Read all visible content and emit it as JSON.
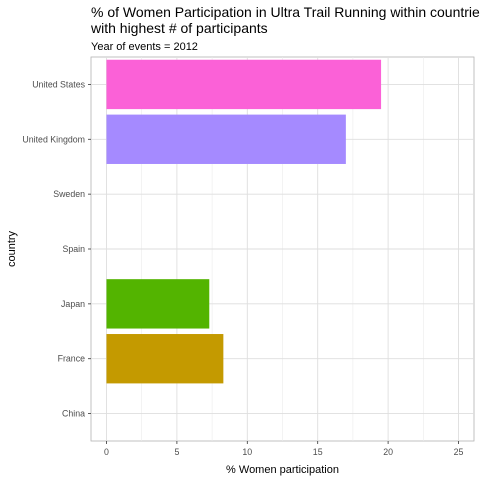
{
  "chart_data": {
    "type": "bar",
    "orientation": "horizontal",
    "title_lines": [
      "% of Women Participation in Ultra Trail Running within countries",
      "with highest # of participants"
    ],
    "subtitle": "Year of events = 2012",
    "xlabel": "% Women participation",
    "ylabel": "country",
    "categories": [
      "China",
      "France",
      "Japan",
      "Spain",
      "Sweden",
      "United Kingdom",
      "United States"
    ],
    "values": [
      0,
      8.3,
      7.3,
      0,
      0,
      17.0,
      19.5
    ],
    "colors": [
      "#F8766D",
      "#C49A00",
      "#53B400",
      "#00C094",
      "#00B6EB",
      "#A58AFF",
      "#FB61D7"
    ],
    "xlim": [
      -1.1,
      26.1
    ],
    "x_ticks": [
      0,
      5,
      10,
      15,
      20,
      25
    ],
    "x_tick_labels": [
      "0",
      "5",
      "10",
      "15",
      "20",
      "25"
    ],
    "grid": true,
    "legend": "none"
  }
}
